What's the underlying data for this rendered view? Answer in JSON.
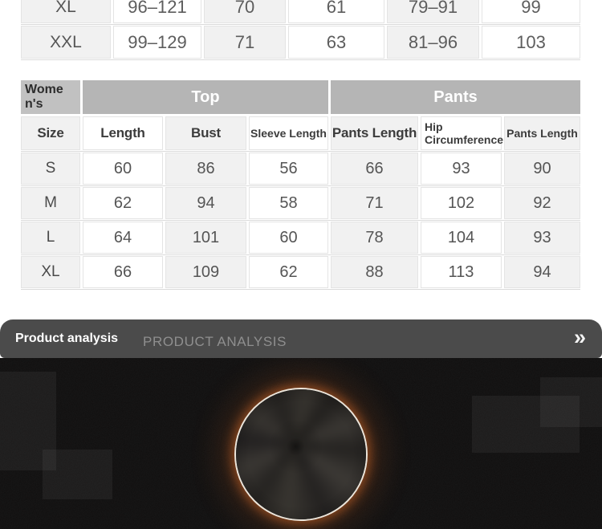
{
  "upper_table": {
    "rows": [
      {
        "label": "XL",
        "values": [
          "96–121",
          "70",
          "61",
          "79–91",
          "99"
        ]
      },
      {
        "label": "XXL",
        "values": [
          "99–129",
          "71",
          "63",
          "81–96",
          "103"
        ]
      }
    ]
  },
  "womens_table": {
    "corner_label": "Women's",
    "group_top": "Top",
    "group_pants": "Pants",
    "columns": [
      "Size",
      "Length",
      "Bust",
      "Sleeve Length",
      "Pants Length",
      "Hip Circumference",
      "Pants Length"
    ],
    "rows": [
      {
        "label": "S",
        "values": [
          "60",
          "86",
          "56",
          "66",
          "93",
          "90"
        ]
      },
      {
        "label": "M",
        "values": [
          "62",
          "94",
          "58",
          "71",
          "102",
          "92"
        ]
      },
      {
        "label": "L",
        "values": [
          "64",
          "101",
          "60",
          "78",
          "104",
          "93"
        ]
      },
      {
        "label": "XL",
        "values": [
          "66",
          "109",
          "62",
          "88",
          "113",
          "94"
        ]
      }
    ]
  },
  "analysis": {
    "title": "Product analysis",
    "subtitle": "PRODUCT ANALYSIS",
    "chevron": "»"
  },
  "colors": {
    "header_gray": "#b5b5b5",
    "corner_gray": "#c1c1c1",
    "cell_gray": "#f1f1f1",
    "bar_gray": "#4b4b4b",
    "section_black": "#0f0e0e",
    "glow_orange": "#e06e28",
    "ring_white": "#ece6dc"
  }
}
